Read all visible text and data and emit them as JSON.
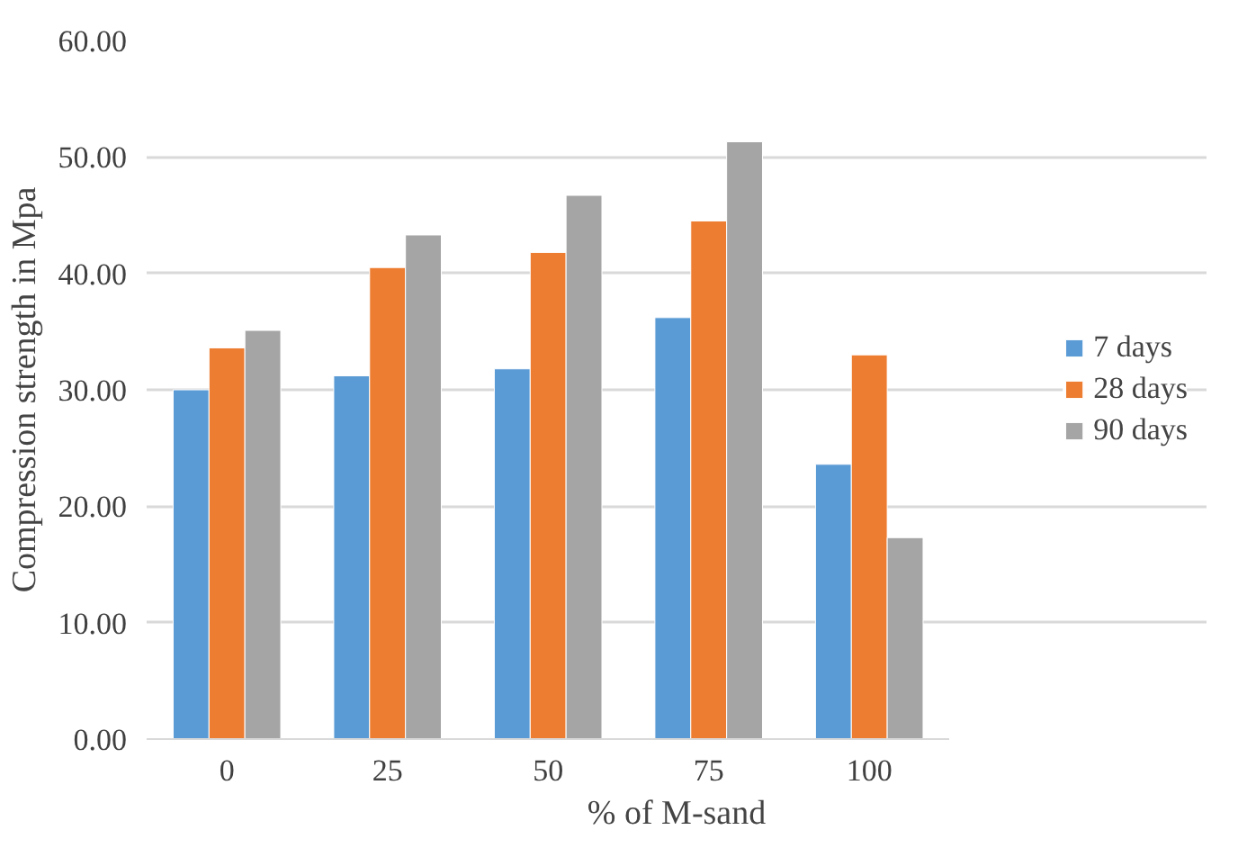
{
  "chart_data": {
    "type": "bar",
    "xlabel": "% of M-sand",
    "ylabel": "Compression strength in Mpa",
    "categories": [
      "0",
      "25",
      "50",
      "75",
      "100"
    ],
    "series": [
      {
        "name": "7 days",
        "color": "#5b9bd5",
        "values": [
          30.0,
          31.2,
          31.8,
          36.2,
          23.6
        ]
      },
      {
        "name": "28 days",
        "color": "#ed7d31",
        "values": [
          33.6,
          40.5,
          41.8,
          44.5,
          33.0
        ]
      },
      {
        "name": "90 days",
        "color": "#a5a5a5",
        "values": [
          35.1,
          43.3,
          46.7,
          51.3,
          17.3
        ]
      }
    ],
    "ylim": [
      0,
      60
    ],
    "yticks": [
      {
        "value": 0,
        "label": "0.00"
      },
      {
        "value": 10,
        "label": "10.00"
      },
      {
        "value": 20,
        "label": "20.00"
      },
      {
        "value": 30,
        "label": "30.00"
      },
      {
        "value": 40,
        "label": "40.00"
      },
      {
        "value": 50,
        "label": "50.00"
      },
      {
        "value": 60,
        "label": "60.00"
      }
    ],
    "grid": "y",
    "legend": "right"
  }
}
